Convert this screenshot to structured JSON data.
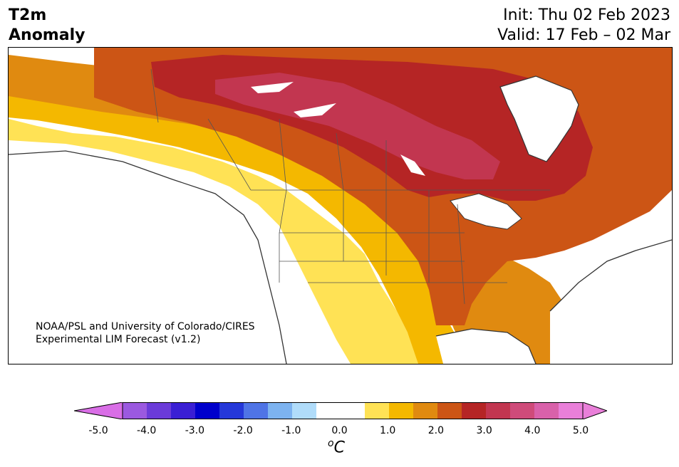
{
  "title": {
    "line1": "T2m",
    "line2": "Anomaly"
  },
  "dates": {
    "init": "Init: Thu 02 Feb 2023",
    "valid": "Valid: 17 Feb – 02 Mar"
  },
  "credit": {
    "line1": "NOAA/PSL and University of Colorado/CIRES",
    "line2": "Experimental LIM Forecast (v1.2)"
  },
  "colorbar": {
    "min_color": "#d96ee6",
    "max_color": "#e97fd9",
    "colors": [
      "#9b59e0",
      "#6b3bd9",
      "#3a1fd4",
      "#0000cc",
      "#2538d9",
      "#4f74e6",
      "#7db3f0",
      "#b0dcfa",
      "#ffffff",
      "#ffffff",
      "#ffe255",
      "#f4b800",
      "#e08a10",
      "#cc5515",
      "#b52525",
      "#c23650",
      "#cf4b7a",
      "#d961aa",
      "#e97fd9"
    ],
    "tick_labels": [
      "-5.0",
      "-4.0",
      "-3.0",
      "-2.0",
      "-1.0",
      "0.0",
      "1.0",
      "2.0",
      "3.0",
      "4.0",
      "5.0"
    ],
    "unit_main": "C",
    "unit_sup": "o"
  },
  "legend_levels": [
    "<-5.0",
    "-5.0",
    "-4.5",
    "-4.0",
    "-3.5",
    "-3.0",
    "-2.5",
    "-2.0",
    "-1.5",
    "-1.0",
    "-0.5",
    "0.5",
    "1.0",
    "1.5",
    "2.0",
    "2.5",
    "3.0",
    "3.5",
    "4.0",
    "4.5",
    ">5.0"
  ]
}
